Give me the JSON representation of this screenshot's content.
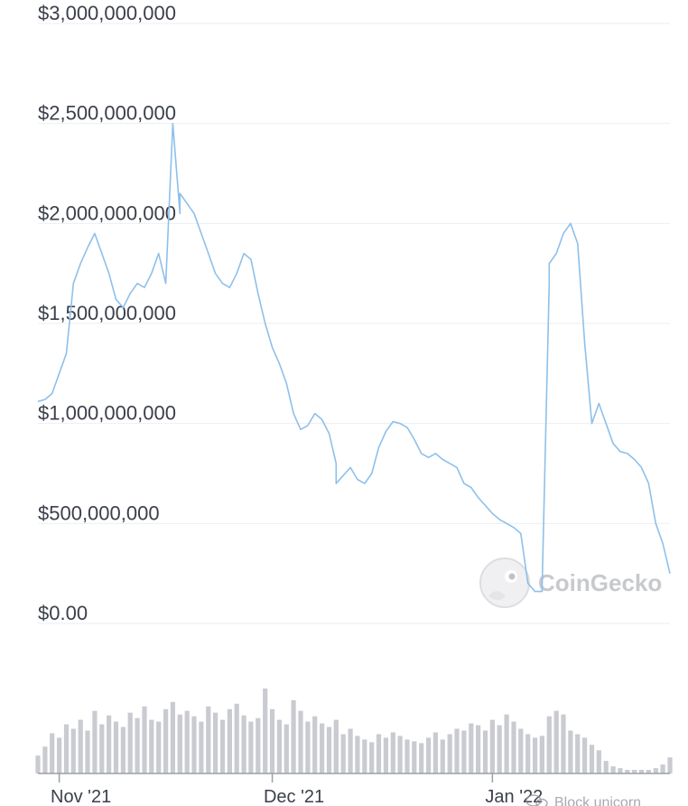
{
  "chart_data": {
    "type": "line",
    "y_tick_labels": [
      "$3,000,000,000",
      "$2,500,000,000",
      "$2,000,000,000",
      "$1,500,000,000",
      "$1,000,000,000",
      "$500,000,000",
      "$0.00"
    ],
    "y_ticks": [
      3000000000,
      2500000000,
      2000000000,
      1500000000,
      1000000000,
      500000000,
      0
    ],
    "x_tick_labels": [
      "Nov '21",
      "Dec '21",
      "Jan '22"
    ],
    "x_ticks": [
      "2021-11-01",
      "2021-12-01",
      "2022-01-01"
    ],
    "xlim": [
      "2021-10-29",
      "2022-01-26"
    ],
    "ylim": [
      0,
      3000000000
    ],
    "grid": true,
    "line_color": "#8ec0ea",
    "volume_color": "#c9cbd1",
    "series": [
      {
        "x": [
          "2021-10-29",
          "2021-10-30",
          "2021-10-31",
          "2021-11-01",
          "2021-11-02",
          "2021-11-03",
          "2021-11-04",
          "2021-11-05",
          "2021-11-06",
          "2021-11-07",
          "2021-11-08",
          "2021-11-09",
          "2021-11-10",
          "2021-11-11",
          "2021-11-12",
          "2021-11-13",
          "2021-11-14",
          "2021-11-15",
          "2021-11-16",
          "2021-11-17",
          "2021-11-18",
          "2021-11-18",
          "2021-11-19",
          "2021-11-20",
          "2021-11-21",
          "2021-11-22",
          "2021-11-23",
          "2021-11-24",
          "2021-11-25",
          "2021-11-26",
          "2021-11-27",
          "2021-11-28",
          "2021-11-29",
          "2021-11-30",
          "2021-12-01",
          "2021-12-02",
          "2021-12-03",
          "2021-12-04",
          "2021-12-05",
          "2021-12-06",
          "2021-12-07",
          "2021-12-08",
          "2021-12-09",
          "2021-12-10",
          "2021-12-10",
          "2021-12-11",
          "2021-12-12",
          "2021-12-13",
          "2021-12-14",
          "2021-12-15",
          "2021-12-16",
          "2021-12-17",
          "2021-12-18",
          "2021-12-19",
          "2021-12-20",
          "2021-12-21",
          "2021-12-22",
          "2021-12-23",
          "2021-12-24",
          "2021-12-25",
          "2021-12-26",
          "2021-12-27",
          "2021-12-28",
          "2021-12-29",
          "2021-12-30",
          "2021-12-31",
          "2022-01-01",
          "2022-01-02",
          "2022-01-03",
          "2022-01-04",
          "2022-01-05",
          "2022-01-06",
          "2022-01-07",
          "2022-01-08",
          "2022-01-08",
          "2022-01-09",
          "2022-01-09",
          "2022-01-10",
          "2022-01-11",
          "2022-01-12",
          "2022-01-13",
          "2022-01-14",
          "2022-01-15",
          "2022-01-16",
          "2022-01-17",
          "2022-01-18",
          "2022-01-19",
          "2022-01-20",
          "2022-01-21",
          "2022-01-22",
          "2022-01-23",
          "2022-01-24",
          "2022-01-25",
          "2022-01-26"
        ],
        "y": [
          1110000000,
          1120000000,
          1150000000,
          1250000000,
          1350000000,
          1700000000,
          1800000000,
          1880000000,
          1950000000,
          1850000000,
          1750000000,
          1620000000,
          1580000000,
          1650000000,
          1700000000,
          1680000000,
          1750000000,
          1850000000,
          1700000000,
          2500000000,
          2050000000,
          2150000000,
          2100000000,
          2050000000,
          1950000000,
          1850000000,
          1750000000,
          1700000000,
          1680000000,
          1750000000,
          1850000000,
          1820000000,
          1650000000,
          1500000000,
          1380000000,
          1300000000,
          1200000000,
          1050000000,
          970000000,
          990000000,
          1050000000,
          1020000000,
          950000000,
          800000000,
          700000000,
          740000000,
          780000000,
          720000000,
          700000000,
          750000000,
          880000000,
          960000000,
          1010000000,
          1000000000,
          980000000,
          920000000,
          850000000,
          830000000,
          850000000,
          820000000,
          800000000,
          780000000,
          700000000,
          680000000,
          630000000,
          590000000,
          550000000,
          520000000,
          500000000,
          480000000,
          450000000,
          200000000,
          160000000,
          160000000,
          180000000,
          1700000000,
          1800000000,
          1850000000,
          1950000000,
          2000000000,
          1900000000,
          1400000000,
          1000000000,
          1100000000,
          1000000000,
          900000000,
          860000000,
          850000000,
          820000000,
          780000000,
          700000000,
          500000000,
          400000000,
          250000000
        ],
        "volume": [
          20,
          30,
          45,
          40,
          55,
          50,
          60,
          48,
          70,
          55,
          65,
          58,
          52,
          68,
          62,
          75,
          60,
          58,
          72,
          80,
          66,
          62,
          70,
          64,
          58,
          75,
          68,
          60,
          72,
          78,
          65,
          58,
          62,
          95,
          72,
          60,
          55,
          82,
          70,
          58,
          64,
          56,
          52,
          60,
          48,
          44,
          50,
          42,
          38,
          35,
          44,
          40,
          46,
          42,
          38,
          36,
          34,
          40,
          46,
          38,
          44,
          50,
          48,
          56,
          54,
          48,
          60,
          54,
          66,
          58,
          50,
          44,
          40,
          42,
          38,
          40,
          64,
          70,
          66,
          48,
          44,
          40,
          32,
          26,
          14,
          8,
          6,
          4,
          4,
          4,
          4,
          6,
          10,
          18
        ]
      }
    ]
  },
  "watermark": {
    "text": "CoinGecko",
    "icon": "gecko-logo-icon"
  },
  "footer": {
    "icon": "wechat-icon",
    "text": "Block unicorn"
  }
}
